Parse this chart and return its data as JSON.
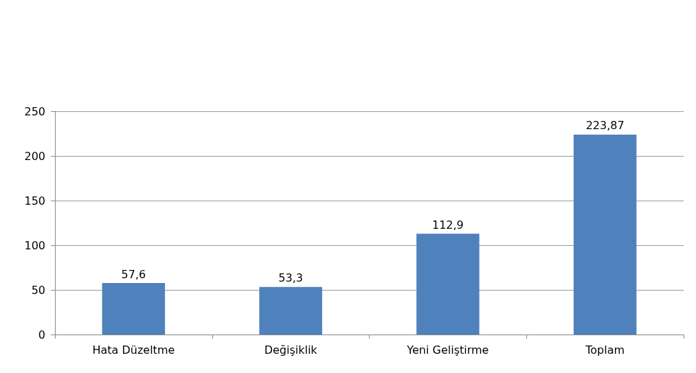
{
  "chart_data": {
    "type": "bar",
    "categories": [
      "Hata Düzeltme",
      "Değişiklik",
      "Yeni Geliştirme",
      "Toplam"
    ],
    "values": [
      57.6,
      53.3,
      112.9,
      223.87
    ],
    "value_labels": [
      "57,6",
      "53,3",
      "112,9",
      "223,87"
    ],
    "color": "#4f81bd",
    "ylim": [
      0,
      250
    ],
    "yticks": [
      0,
      50,
      100,
      150,
      200,
      250
    ],
    "grid": "y"
  }
}
